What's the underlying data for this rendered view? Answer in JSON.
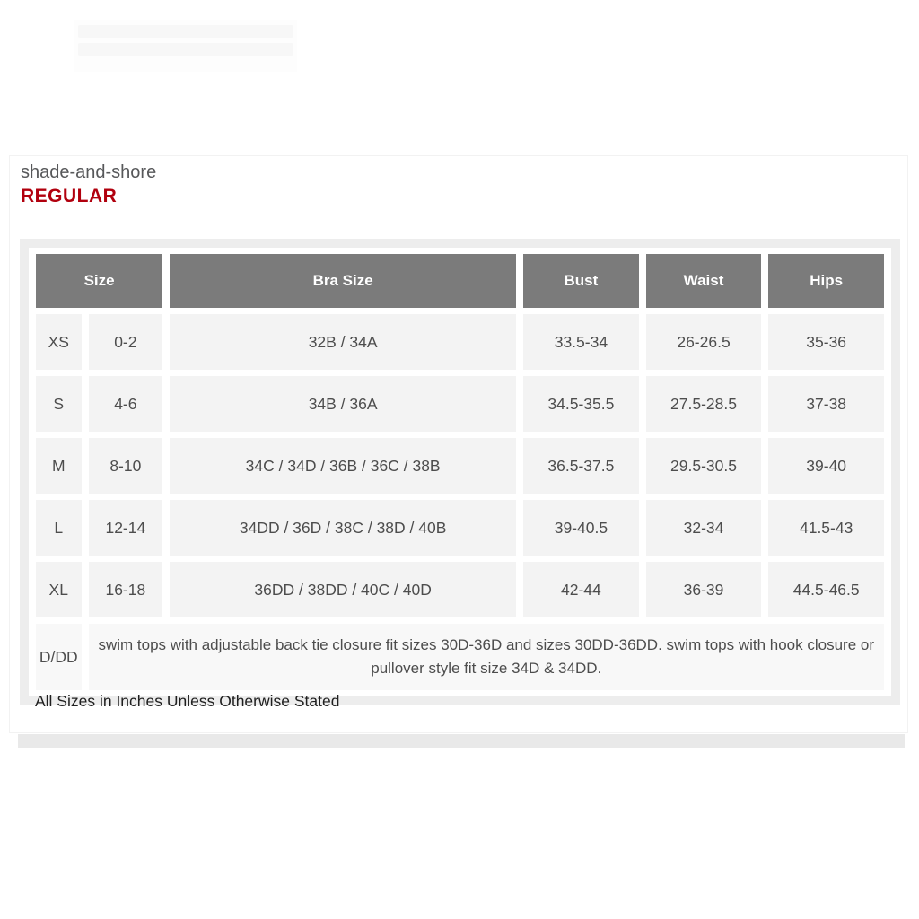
{
  "page": {
    "brand": "shade-and-shore",
    "fit_label": "REGULAR",
    "footnote": "All Sizes in Inches Unless Otherwise Stated"
  },
  "size_chart": {
    "headers": {
      "size": "Size",
      "bra_size": "Bra Size",
      "bust": "Bust",
      "waist": "Waist",
      "hips": "Hips"
    },
    "rows": [
      {
        "size_letter": "XS",
        "size_range": "0-2",
        "bra_size": "32B / 34A",
        "bust": "33.5-34",
        "waist": "26-26.5",
        "hips": "35-36"
      },
      {
        "size_letter": "S",
        "size_range": "4-6",
        "bra_size": "34B / 36A",
        "bust": "34.5-35.5",
        "waist": "27.5-28.5",
        "hips": "37-38"
      },
      {
        "size_letter": "M",
        "size_range": "8-10",
        "bra_size": "34C / 34D / 36B / 36C / 38B",
        "bust": "36.5-37.5",
        "waist": "29.5-30.5",
        "hips": "39-40"
      },
      {
        "size_letter": "L",
        "size_range": "12-14",
        "bra_size": "34DD / 36D / 38C / 38D / 40B",
        "bust": "39-40.5",
        "waist": "32-34",
        "hips": "41.5-43"
      },
      {
        "size_letter": "XL",
        "size_range": "16-18",
        "bra_size": "36DD / 38DD / 40C / 40D",
        "bust": "42-44",
        "waist": "36-39",
        "hips": "44.5-46.5"
      }
    ],
    "note_row": {
      "label": "D/DD",
      "description": "swim tops with adjustable back tie closure fit sizes 30D-36D and sizes 30DD-36DD. swim tops with hook closure or pullover style fit size 34D & 34DD."
    }
  },
  "colors": {
    "header_bg": "#7b7b7b",
    "header_text": "#ffffff",
    "cell_bg": "#f3f3f3",
    "note_row_bg": "#f8f8f8",
    "wrapper_bg": "#ededed",
    "accent_red": "#b1000e",
    "body_text": "#4d4d4d",
    "bottom_track": "#e9e9e9"
  }
}
